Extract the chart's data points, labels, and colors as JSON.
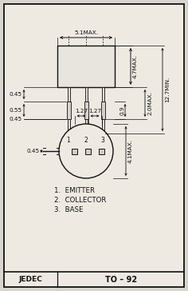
{
  "background_color": "#d8d5ce",
  "inner_bg": "#eeeae2",
  "border_color": "#222222",
  "line_color": "#111111",
  "text_color": "#111111",
  "footer_text_left": "JEDEC",
  "footer_text_right": "TO– 92",
  "label1": "1.  EMITTER",
  "label2": "2.  COLLECTOR",
  "label3": "3.  BASE",
  "dim_51": "5.1MAX.",
  "dim_47": "4.7MAX.",
  "dim_127a": "1.27",
  "dim_127b": "1.27",
  "dim_045a": "0.45",
  "dim_055": "0.55",
  "dim_045b": "0.45",
  "dim_09": "0.9",
  "dim_20": "2.0MAX.",
  "dim_127min": "12.7MIN.",
  "dim_045c": "0.45",
  "dim_41": "4.1MAX."
}
